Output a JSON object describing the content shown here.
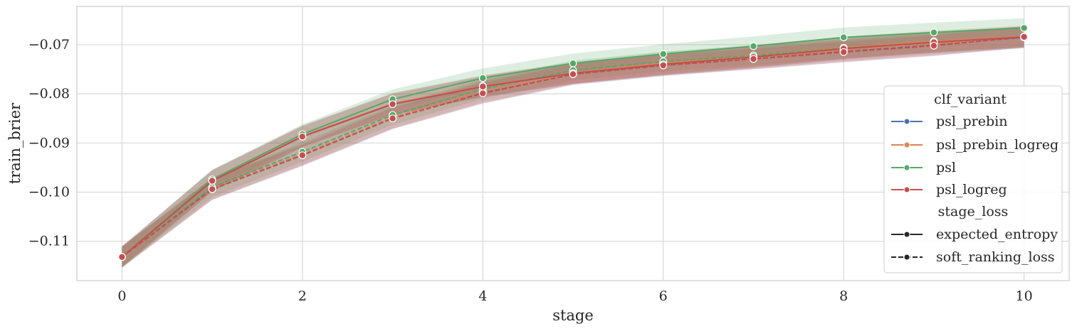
{
  "chart_data": {
    "type": "line",
    "xlabel": "stage",
    "ylabel": "train_brier",
    "xlim": [
      -0.5,
      10.5
    ],
    "ylim": [
      -0.118,
      -0.0622
    ],
    "x_ticks": [
      0,
      2,
      4,
      6,
      8,
      10
    ],
    "y_ticks": [
      -0.11,
      -0.1,
      -0.09,
      -0.08,
      -0.07
    ],
    "y_tick_labels": [
      "−0.11",
      "−0.10",
      "−0.09",
      "−0.08",
      "−0.07"
    ],
    "grid": true,
    "legend_placement": "center-right",
    "x": [
      0,
      1,
      2,
      3,
      4,
      5,
      6,
      7,
      8,
      9,
      10
    ],
    "series": [
      {
        "name": "psl_prebin",
        "stage_loss": "expected_entropy",
        "color": "#4c72b0",
        "dash": false,
        "values": [
          -0.1132,
          -0.0977,
          -0.0887,
          -0.0821,
          -0.0785,
          -0.0758,
          -0.074,
          -0.0725,
          -0.0708,
          -0.0695,
          -0.0685
        ],
        "band": 0.0022
      },
      {
        "name": "psl_prebin",
        "stage_loss": "soft_ranking_loss",
        "color": "#4c72b0",
        "dash": true,
        "values": [
          -0.1132,
          -0.0994,
          -0.0925,
          -0.085,
          -0.0797,
          -0.076,
          -0.0742,
          -0.0728,
          -0.0713,
          -0.07,
          -0.0685
        ],
        "band": 0.0022
      },
      {
        "name": "psl_prebin_logreg",
        "stage_loss": "expected_entropy",
        "color": "#dd8452",
        "dash": false,
        "values": [
          -0.1132,
          -0.0977,
          -0.0886,
          -0.082,
          -0.0784,
          -0.0757,
          -0.0737,
          -0.0722,
          -0.0706,
          -0.0693,
          -0.0683
        ],
        "band": 0.0022
      },
      {
        "name": "psl_prebin_logreg",
        "stage_loss": "soft_ranking_loss",
        "color": "#dd8452",
        "dash": true,
        "values": [
          -0.1132,
          -0.0993,
          -0.0923,
          -0.0848,
          -0.0795,
          -0.0758,
          -0.074,
          -0.0726,
          -0.0711,
          -0.0698,
          -0.0684
        ],
        "band": 0.0022
      },
      {
        "name": "psl",
        "stage_loss": "expected_entropy",
        "color": "#55a868",
        "dash": false,
        "values": [
          -0.1132,
          -0.0974,
          -0.0882,
          -0.0811,
          -0.0768,
          -0.0738,
          -0.0719,
          -0.0703,
          -0.0685,
          -0.0675,
          -0.0666
        ],
        "band": 0.002
      },
      {
        "name": "psl",
        "stage_loss": "soft_ranking_loss",
        "color": "#55a868",
        "dash": true,
        "values": [
          -0.1132,
          -0.099,
          -0.0918,
          -0.0843,
          -0.079,
          -0.0752,
          -0.0734,
          -0.0722,
          -0.0707,
          -0.0695,
          -0.0684
        ],
        "band": 0.002
      },
      {
        "name": "psl_logreg",
        "stage_loss": "expected_entropy",
        "color": "#c44e52",
        "dash": false,
        "values": [
          -0.1132,
          -0.0977,
          -0.0887,
          -0.0821,
          -0.0785,
          -0.0758,
          -0.074,
          -0.0725,
          -0.0708,
          -0.0695,
          -0.0684
        ],
        "band": 0.0021
      },
      {
        "name": "psl_logreg",
        "stage_loss": "soft_ranking_loss",
        "color": "#c44e52",
        "dash": true,
        "values": [
          -0.1132,
          -0.0994,
          -0.0925,
          -0.085,
          -0.0799,
          -0.076,
          -0.0742,
          -0.0729,
          -0.0715,
          -0.0702,
          -0.0684
        ],
        "band": 0.0021
      }
    ],
    "legend": {
      "hue_title": "clf_variant",
      "hue_entries": [
        {
          "label": "psl_prebin",
          "color": "#4c72b0"
        },
        {
          "label": "psl_prebin_logreg",
          "color": "#dd8452"
        },
        {
          "label": "psl",
          "color": "#55a868"
        },
        {
          "label": "psl_logreg",
          "color": "#c44e52"
        }
      ],
      "style_title": "stage_loss",
      "style_entries": [
        {
          "label": "expected_entropy",
          "dash": false
        },
        {
          "label": "soft_ranking_loss",
          "dash": true
        }
      ]
    }
  }
}
